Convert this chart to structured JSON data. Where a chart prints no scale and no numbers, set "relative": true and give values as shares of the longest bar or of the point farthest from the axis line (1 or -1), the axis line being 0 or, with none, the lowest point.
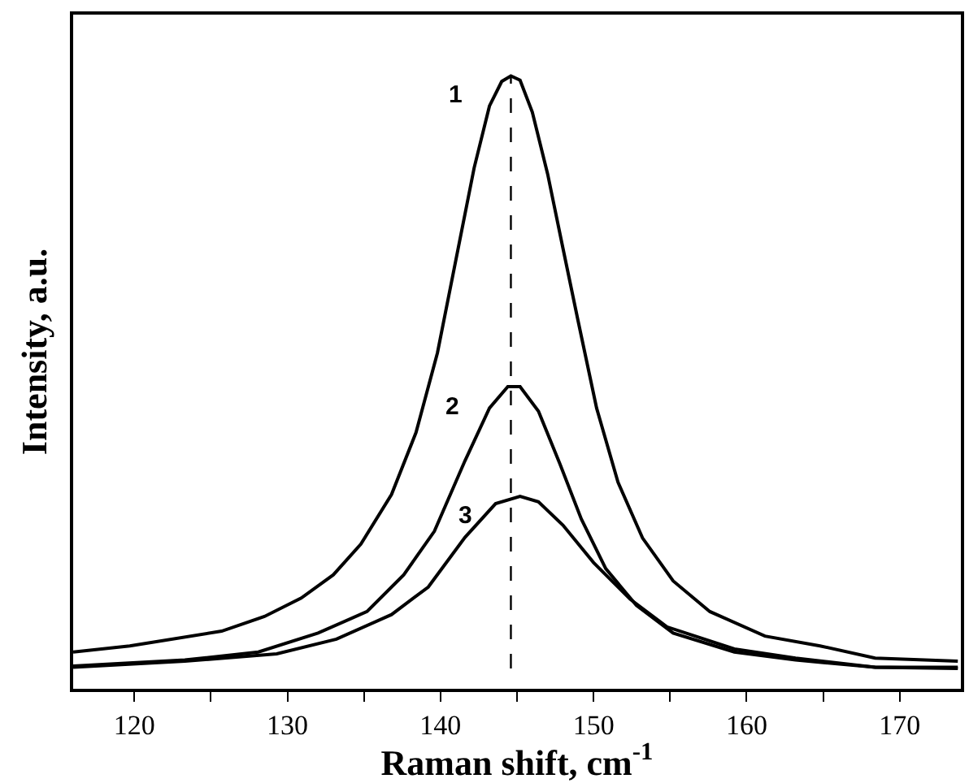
{
  "chart_data": {
    "type": "line",
    "relative": true,
    "xlabel": "Raman shift, cm$^{-1}$",
    "ylabel": "Intensity, a.u.",
    "xlim": [
      116,
      174
    ],
    "xticks": [
      120,
      {
        "value": 125,
        "label": null
      },
      130,
      {
        "value": 135,
        "label": null
      },
      140,
      {
        "value": 145,
        "label": null
      },
      150,
      {
        "value": 155,
        "label": null
      },
      160,
      {
        "value": 165,
        "label": null
      },
      170
    ],
    "tick_labels": "x",
    "legend": false,
    "marker": "none",
    "line_style": "solid",
    "ref_lines": [
      {
        "axis": "x",
        "value": 144.6,
        "label": null,
        "color": "#000000",
        "line_style": "dashed"
      }
    ],
    "series": [
      {
        "name": "1",
        "color": "#000000",
        "x": [
          116.0,
          119.7,
          125.7,
          128.5,
          130.9,
          133.0,
          134.8,
          136.8,
          138.4,
          139.8,
          141.0,
          142.2,
          143.2,
          144.0,
          144.6,
          145.2,
          146.0,
          147.0,
          148.0,
          149.0,
          150.2,
          151.6,
          153.2,
          155.2,
          157.6,
          161.2,
          164.8,
          168.4,
          173.8
        ],
        "values": [
          0.06,
          0.07,
          0.094,
          0.118,
          0.148,
          0.186,
          0.236,
          0.317,
          0.418,
          0.548,
          0.699,
          0.85,
          0.951,
          0.991,
          1.0,
          0.993,
          0.941,
          0.84,
          0.719,
          0.599,
          0.458,
          0.337,
          0.246,
          0.176,
          0.126,
          0.086,
          0.07,
          0.05,
          0.045
        ]
      },
      {
        "name": "2",
        "color": "#000000",
        "x": [
          116.0,
          123.3,
          128.1,
          132.0,
          135.2,
          137.6,
          139.6,
          141.6,
          143.2,
          144.4,
          145.2,
          146.4,
          147.8,
          149.2,
          150.8,
          152.8,
          155.2,
          159.2,
          163.2,
          168.4,
          173.8
        ],
        "values": [
          0.037,
          0.047,
          0.06,
          0.091,
          0.126,
          0.186,
          0.257,
          0.372,
          0.458,
          0.493,
          0.493,
          0.453,
          0.367,
          0.277,
          0.196,
          0.136,
          0.091,
          0.06,
          0.047,
          0.035,
          0.035
        ]
      },
      {
        "name": "3",
        "color": "#000000",
        "x": [
          116.0,
          123.3,
          129.3,
          133.2,
          136.8,
          139.2,
          141.6,
          143.6,
          145.2,
          146.4,
          148.0,
          150.0,
          152.4,
          154.8,
          159.2,
          163.2,
          168.4,
          173.8
        ],
        "values": [
          0.035,
          0.045,
          0.057,
          0.081,
          0.121,
          0.166,
          0.247,
          0.302,
          0.314,
          0.305,
          0.267,
          0.206,
          0.146,
          0.101,
          0.065,
          0.05,
          0.035,
          0.033
        ]
      }
    ]
  }
}
